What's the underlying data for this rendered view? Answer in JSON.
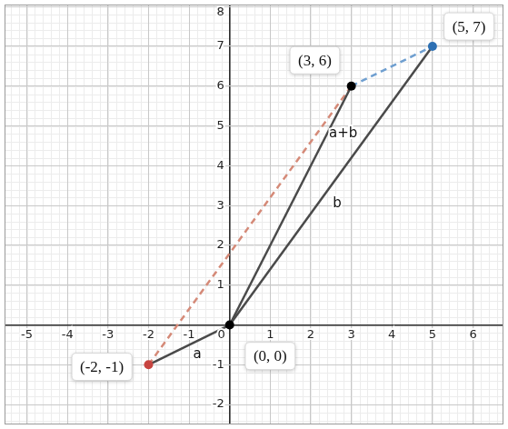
{
  "chart_data": {
    "type": "scatter",
    "xlim": [
      -5.55,
      6.75
    ],
    "ylim": [
      -2.5,
      8.05
    ],
    "xticks": [
      -5,
      -4,
      -3,
      -2,
      -1,
      0,
      1,
      2,
      3,
      4,
      5,
      6
    ],
    "yticks": [
      -2,
      -1,
      0,
      1,
      2,
      3,
      4,
      5,
      6,
      7,
      8
    ],
    "grid": true,
    "series": [
      {
        "type": "line",
        "x": [
          0,
          -2
        ],
        "values": [
          0,
          -1
        ],
        "color": "#4a4a4a",
        "line_style": "solid"
      },
      {
        "type": "line",
        "x": [
          0,
          5
        ],
        "values": [
          0,
          7
        ],
        "color": "#4a4a4a",
        "line_style": "solid"
      },
      {
        "type": "line",
        "x": [
          0,
          3
        ],
        "values": [
          0,
          6
        ],
        "color": "#4a4a4a",
        "line_style": "solid"
      },
      {
        "type": "line",
        "x": [
          -2,
          3
        ],
        "values": [
          -1,
          6
        ],
        "color": "#d58a78",
        "line_style": "dashed"
      },
      {
        "type": "line",
        "x": [
          3,
          5
        ],
        "values": [
          6,
          7
        ],
        "color": "#6f9fd0",
        "line_style": "dashed"
      },
      {
        "type": "scatter",
        "x": [
          -2
        ],
        "values": [
          -1
        ],
        "color": "#c74440",
        "marker": "circle"
      },
      {
        "type": "scatter",
        "x": [
          0
        ],
        "values": [
          0
        ],
        "color": "#000000",
        "marker": "circle"
      },
      {
        "type": "scatter",
        "x": [
          3
        ],
        "values": [
          6
        ],
        "color": "#000000",
        "marker": "circle"
      },
      {
        "type": "scatter",
        "x": [
          5
        ],
        "values": [
          7
        ],
        "color": "#2d70b3",
        "marker": "circle"
      }
    ],
    "point_labels": [
      {
        "text": "(-2, -1)",
        "x": -3.15,
        "y": -1.05
      },
      {
        "text": "(0, 0)",
        "x": 1.0,
        "y": -0.78
      },
      {
        "text": "(3, 6)",
        "x": 2.1,
        "y": 6.65
      },
      {
        "text": "(5, 7)",
        "x": 5.9,
        "y": 7.5
      }
    ],
    "vector_labels": [
      {
        "text": "a",
        "x": -0.8,
        "y": -0.75
      },
      {
        "text": "b",
        "x": 2.65,
        "y": 3.05
      },
      {
        "text": "a+b",
        "x": 2.8,
        "y": 4.8
      }
    ]
  }
}
